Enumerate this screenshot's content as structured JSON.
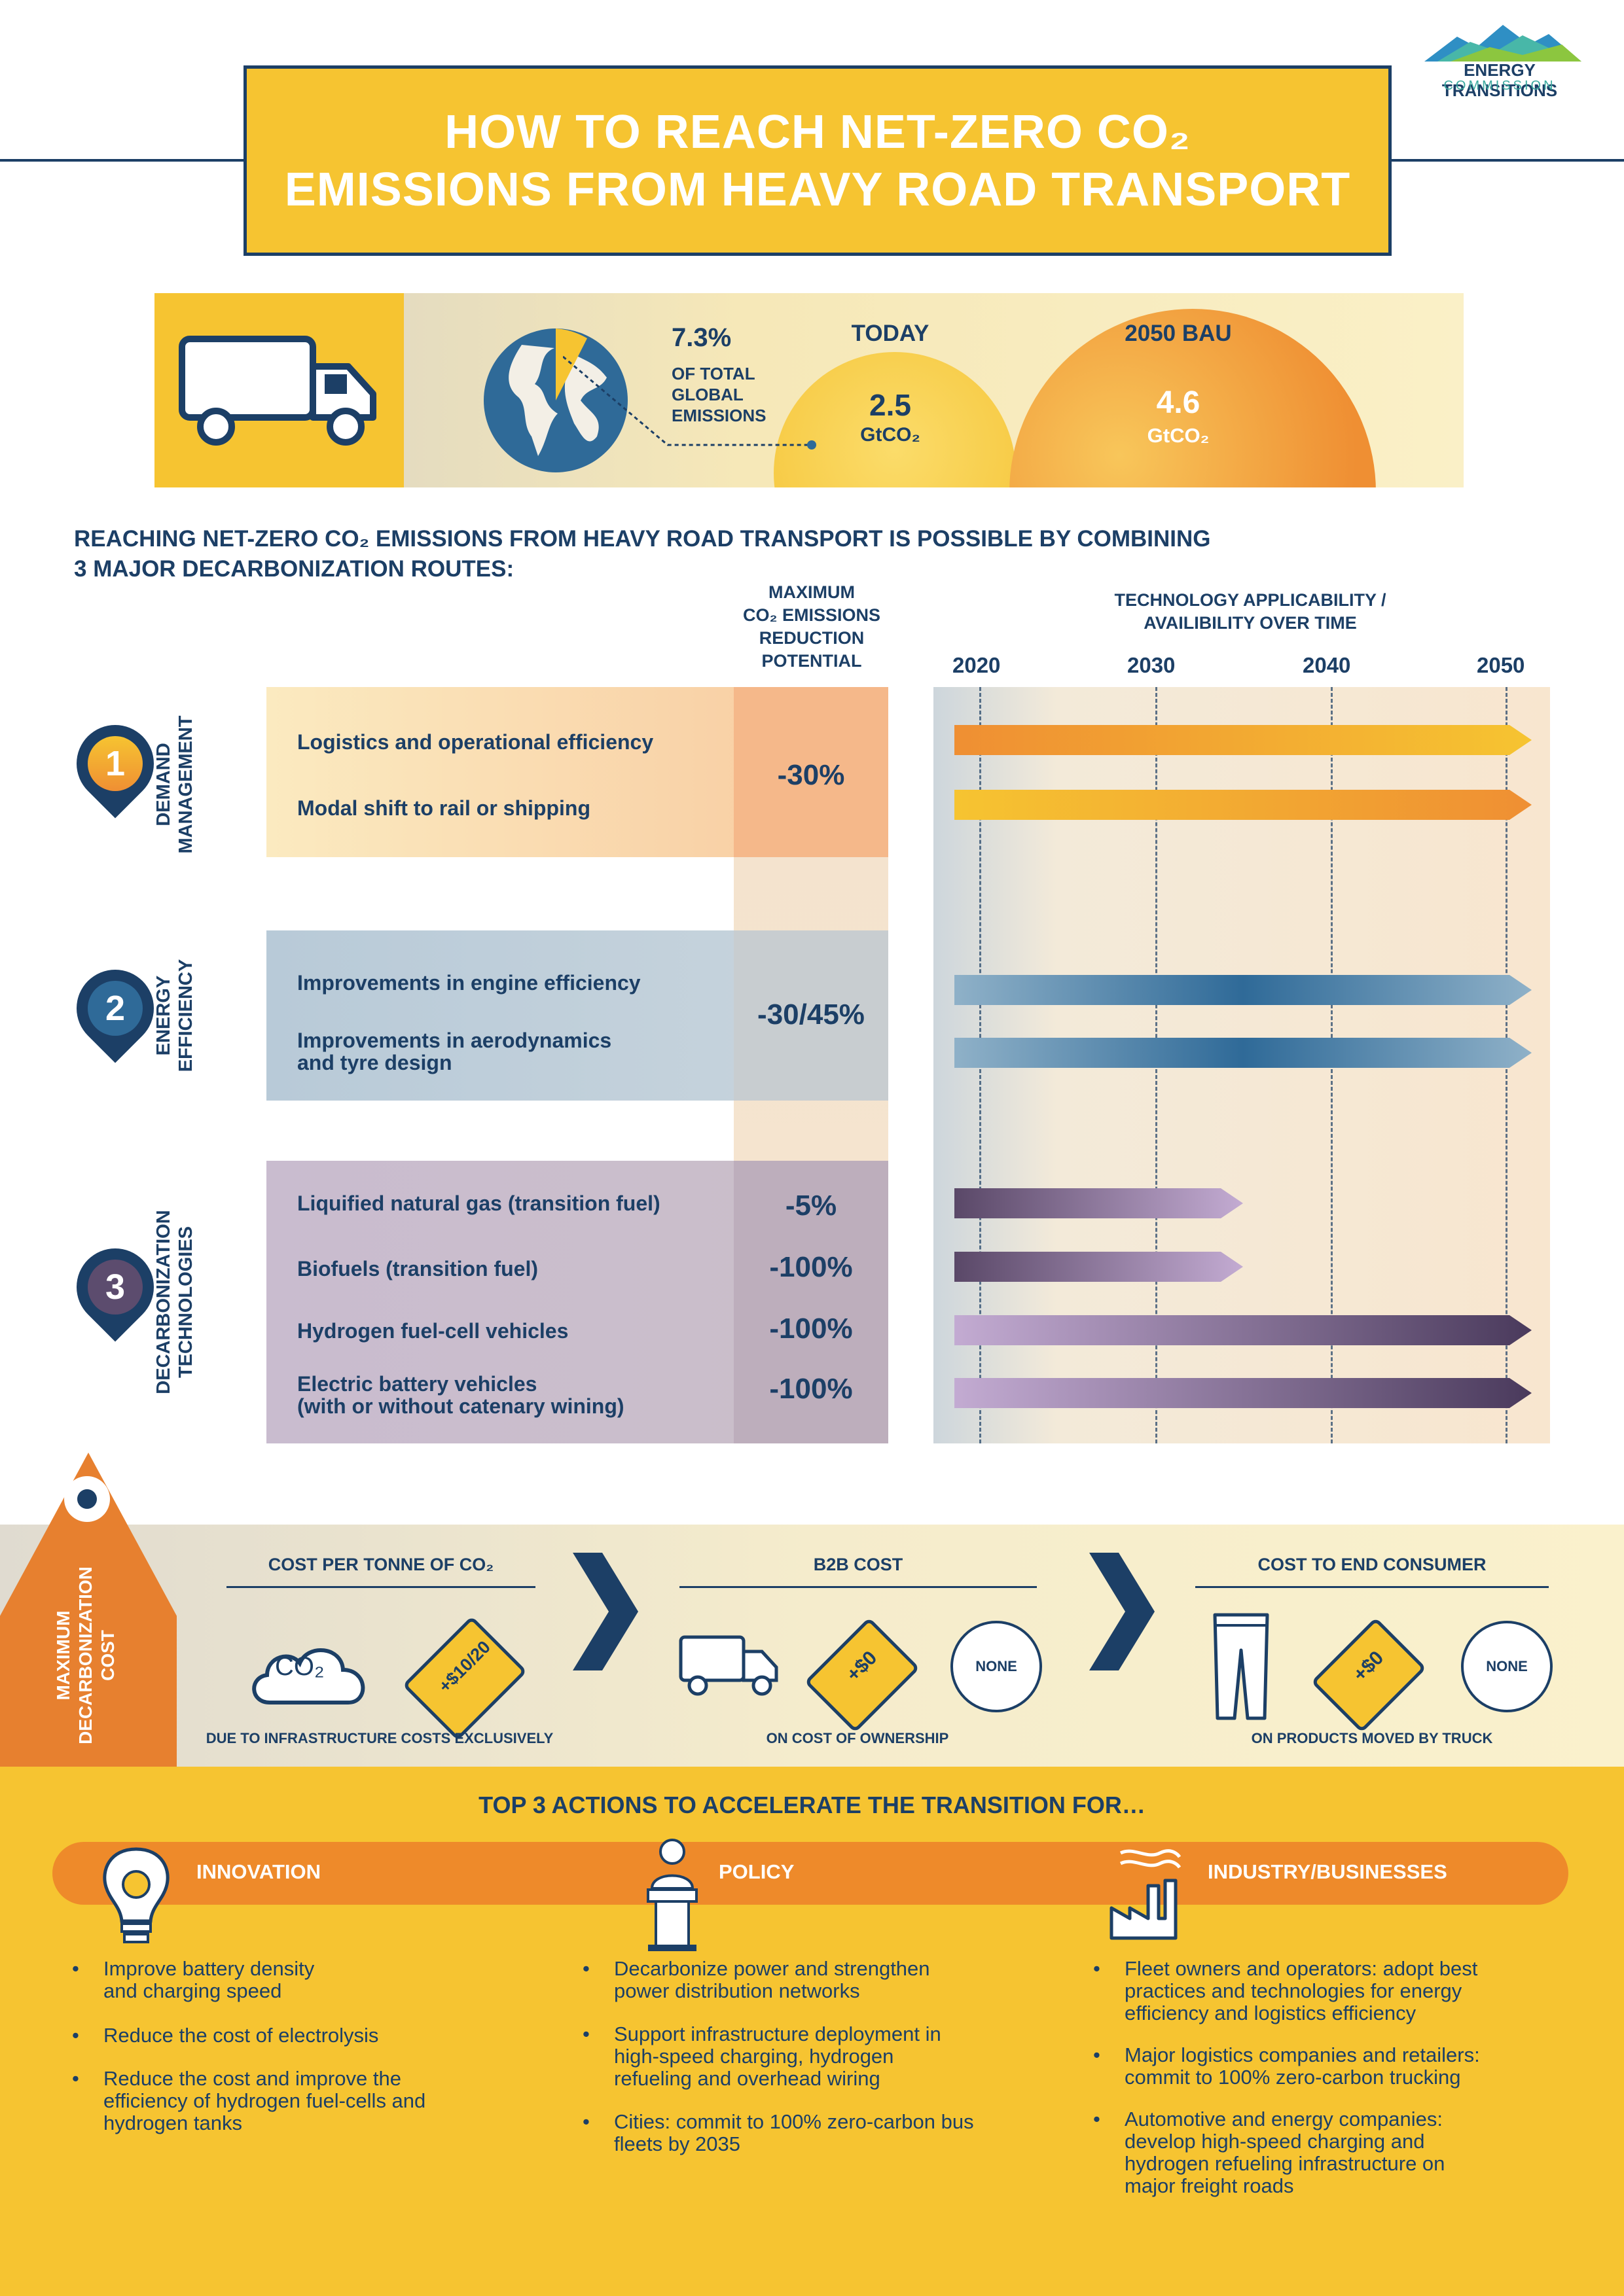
{
  "title": {
    "line1": "HOW TO REACH NET-ZERO CO₂",
    "line2": "EMISSIONS FROM HEAVY ROAD TRANSPORT"
  },
  "logo": {
    "name": "ENERGY TRANSITIONS",
    "sub": "COMMISSION"
  },
  "emissions": {
    "share_pct": "7.3%",
    "share_label": [
      "OF TOTAL",
      "GLOBAL",
      "EMISSIONS"
    ],
    "today": {
      "label": "TODAY",
      "value": "2.5",
      "unit": "GtCO₂"
    },
    "bau": {
      "label": "2050 BAU",
      "value": "4.6",
      "unit": "GtCO₂"
    }
  },
  "headline": {
    "line1": "REACHING NET-ZERO CO₂ EMISSIONS FROM HEAVY ROAD TRANSPORT IS POSSIBLE BY COMBINING",
    "line2": "3 MAJOR DECARBONIZATION ROUTES:"
  },
  "columns": {
    "potential": [
      "MAXIMUM",
      "CO₂ EMISSIONS",
      "REDUCTION",
      "POTENTIAL"
    ],
    "availability": [
      "TECHNOLOGY APPLICABILITY /",
      "AVAILIBILITY OVER TIME"
    ],
    "years": [
      "2020",
      "2030",
      "2040",
      "2050"
    ]
  },
  "routes": [
    {
      "number": "1",
      "name": [
        "DEMAND",
        "MANAGEMENT"
      ],
      "potential": "-30%",
      "items": [
        {
          "label": "Logistics and operational efficiency",
          "end_year": 2050
        },
        {
          "label": "Modal shift to rail or shipping",
          "end_year": 2050
        }
      ]
    },
    {
      "number": "2",
      "name": [
        "ENERGY",
        "EFFICIENCY"
      ],
      "potential": "-30/45%",
      "items": [
        {
          "label": "Improvements in engine efficiency",
          "end_year": 2050
        },
        {
          "label": "Improvements in aerodynamics",
          "label2": "and tyre design",
          "end_year": 2050
        }
      ]
    },
    {
      "number": "3",
      "name": [
        "DECARBONIZATION",
        "TECHNOLOGIES"
      ],
      "items": [
        {
          "label": "Liquified natural gas (transition fuel)",
          "potential": "-5%",
          "end_year": 2035
        },
        {
          "label": "Biofuels (transition fuel)",
          "potential": "-100%",
          "end_year": 2035
        },
        {
          "label": "Hydrogen fuel-cell vehicles",
          "potential": "-100%",
          "end_year": 2050
        },
        {
          "label": "Electric battery vehicles",
          "label2": "(with or without catenary wining)",
          "potential": "-100%",
          "end_year": 2050
        }
      ]
    }
  ],
  "cost": {
    "side_label": [
      "MAXIMUM",
      "DECARBONIZATION",
      "COST"
    ],
    "per_tonne": {
      "title": "COST PER TONNE OF CO₂",
      "co2": "CO₂",
      "tag": "+$10/20",
      "foot": "DUE TO INFRASTRUCTURE COSTS EXCLUSIVELY"
    },
    "b2b": {
      "title": "B2B COST",
      "tag": "+$0",
      "none": "NONE",
      "foot": "ON COST OF OWNERSHIP"
    },
    "consumer": {
      "title": "COST TO END CONSUMER",
      "tag": "+$0",
      "none": "NONE",
      "foot": "ON PRODUCTS MOVED BY TRUCK"
    }
  },
  "actions": {
    "title": "TOP 3 ACTIONS TO ACCELERATE THE TRANSITION FOR…",
    "groups": [
      {
        "label": "INNOVATION",
        "icon": "lightbulb-gear-icon",
        "bullets": [
          [
            "Improve battery density",
            "and charging speed"
          ],
          [
            "Reduce the cost of electrolysis"
          ],
          [
            "Reduce the cost and improve the",
            "efficiency of hydrogen fuel-cells and",
            "hydrogen tanks"
          ]
        ]
      },
      {
        "label": "POLICY",
        "icon": "podium-speaker-icon",
        "bullets": [
          [
            "Decarbonize power and strengthen",
            "power distribution networks"
          ],
          [
            "Support infrastructure deployment in",
            "high-speed charging, hydrogen",
            "refueling and overhead wiring"
          ],
          [
            "Cities: commit to 100% zero-carbon bus",
            "fleets by 2035"
          ]
        ]
      },
      {
        "label": "INDUSTRY/BUSINESSES",
        "icon": "factory-icon",
        "bullets": [
          [
            "Fleet owners and operators: adopt best",
            "practices and technologies for energy",
            "efficiency and logistics efficiency"
          ],
          [
            "Major logistics companies and retailers:",
            "commit to 100% zero-carbon trucking"
          ],
          [
            "Automotive and energy companies:",
            "develop high-speed charging and",
            "hydrogen refueling infrastructure on",
            "major freight roads"
          ]
        ]
      }
    ]
  },
  "colors": {
    "navy": "#1c3f66",
    "yellow": "#f6c431",
    "orange": "#ee8a2a",
    "route1": "#f6c9a0",
    "route2": "#b5c8d6",
    "route3": "#c2b6c9"
  }
}
